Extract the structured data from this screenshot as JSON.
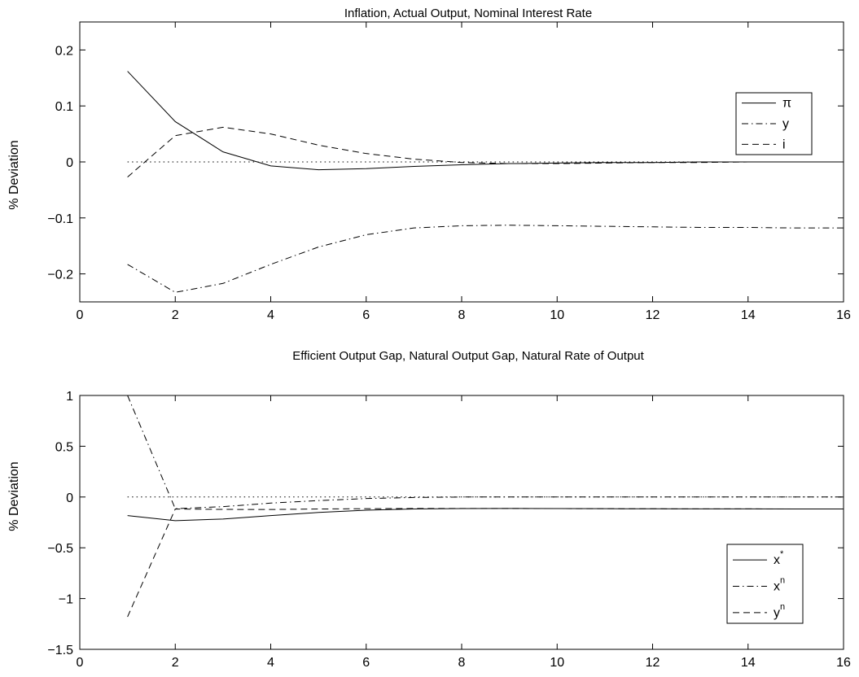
{
  "chart_data": [
    {
      "type": "line",
      "title": "Inflation, Actual Output, Nominal Interest Rate",
      "xlabel": "",
      "ylabel": "% Deviation",
      "xlim": [
        0,
        16
      ],
      "ylim": [
        -0.25,
        0.25
      ],
      "xticks": [
        0,
        2,
        4,
        6,
        8,
        10,
        12,
        14,
        16
      ],
      "yticks": [
        -0.2,
        -0.1,
        0,
        0.1,
        0.2
      ],
      "ytick_labels": [
        "−0.2",
        "−0.1",
        "0",
        "0.1",
        "0.2"
      ],
      "legend_position": "top-right",
      "grid": false,
      "zero_line": true,
      "x": [
        1,
        2,
        3,
        4,
        5,
        6,
        7,
        8,
        9,
        10,
        11,
        12,
        13,
        14,
        15,
        16
      ],
      "series": [
        {
          "name": "π",
          "style": "solid",
          "values": [
            0.162,
            0.072,
            0.018,
            -0.007,
            -0.014,
            -0.012,
            -0.008,
            -0.005,
            -0.003,
            -0.002,
            -0.001,
            -0.001,
            0.0,
            0.0,
            0.0,
            0.0
          ]
        },
        {
          "name": "y",
          "style": "dashdot",
          "values": [
            -0.183,
            -0.233,
            -0.217,
            -0.183,
            -0.152,
            -0.13,
            -0.118,
            -0.114,
            -0.113,
            -0.114,
            -0.115,
            -0.116,
            -0.117,
            -0.117,
            -0.118,
            -0.118
          ]
        },
        {
          "name": "i",
          "style": "dashed",
          "values": [
            -0.027,
            0.047,
            0.062,
            0.05,
            0.03,
            0.015,
            0.005,
            -0.001,
            -0.003,
            -0.003,
            -0.002,
            -0.001,
            -0.001,
            0.0,
            0.0,
            0.0
          ]
        }
      ]
    },
    {
      "type": "line",
      "title": "Efficient Output Gap, Natural Output Gap, Natural Rate of Output",
      "xlabel": "",
      "ylabel": "% Deviation",
      "xlim": [
        0,
        16
      ],
      "ylim": [
        -1.5,
        1
      ],
      "xticks": [
        0,
        2,
        4,
        6,
        8,
        10,
        12,
        14,
        16
      ],
      "yticks": [
        -1.5,
        -1,
        -0.5,
        0,
        0.5,
        1
      ],
      "ytick_labels": [
        "−1.5",
        "−1",
        "−0.5",
        "0",
        "0.5",
        "1"
      ],
      "legend_position": "bottom-right",
      "grid": false,
      "zero_line": true,
      "x": [
        1,
        2,
        3,
        4,
        5,
        6,
        7,
        8,
        9,
        10,
        11,
        12,
        13,
        14,
        15,
        16
      ],
      "series": [
        {
          "name": "x",
          "name_sup": "*",
          "style": "solid",
          "values": [
            -0.183,
            -0.233,
            -0.217,
            -0.183,
            -0.152,
            -0.13,
            -0.118,
            -0.114,
            -0.113,
            -0.114,
            -0.115,
            -0.116,
            -0.117,
            -0.117,
            -0.118,
            -0.118
          ]
        },
        {
          "name": "x",
          "name_sup": "n",
          "style": "dashdot",
          "values": [
            1.0,
            -0.115,
            -0.095,
            -0.06,
            -0.035,
            -0.015,
            -0.005,
            0.0,
            0.0,
            0.0,
            0.0,
            0.0,
            0.0,
            0.0,
            0.0,
            0.0
          ]
        },
        {
          "name": "y",
          "name_sup": "n",
          "style": "dashed",
          "values": [
            -1.18,
            -0.118,
            -0.122,
            -0.123,
            -0.118,
            -0.115,
            -0.113,
            -0.113,
            -0.113,
            -0.114,
            -0.115,
            -0.116,
            -0.117,
            -0.117,
            -0.118,
            -0.118
          ]
        }
      ]
    }
  ]
}
